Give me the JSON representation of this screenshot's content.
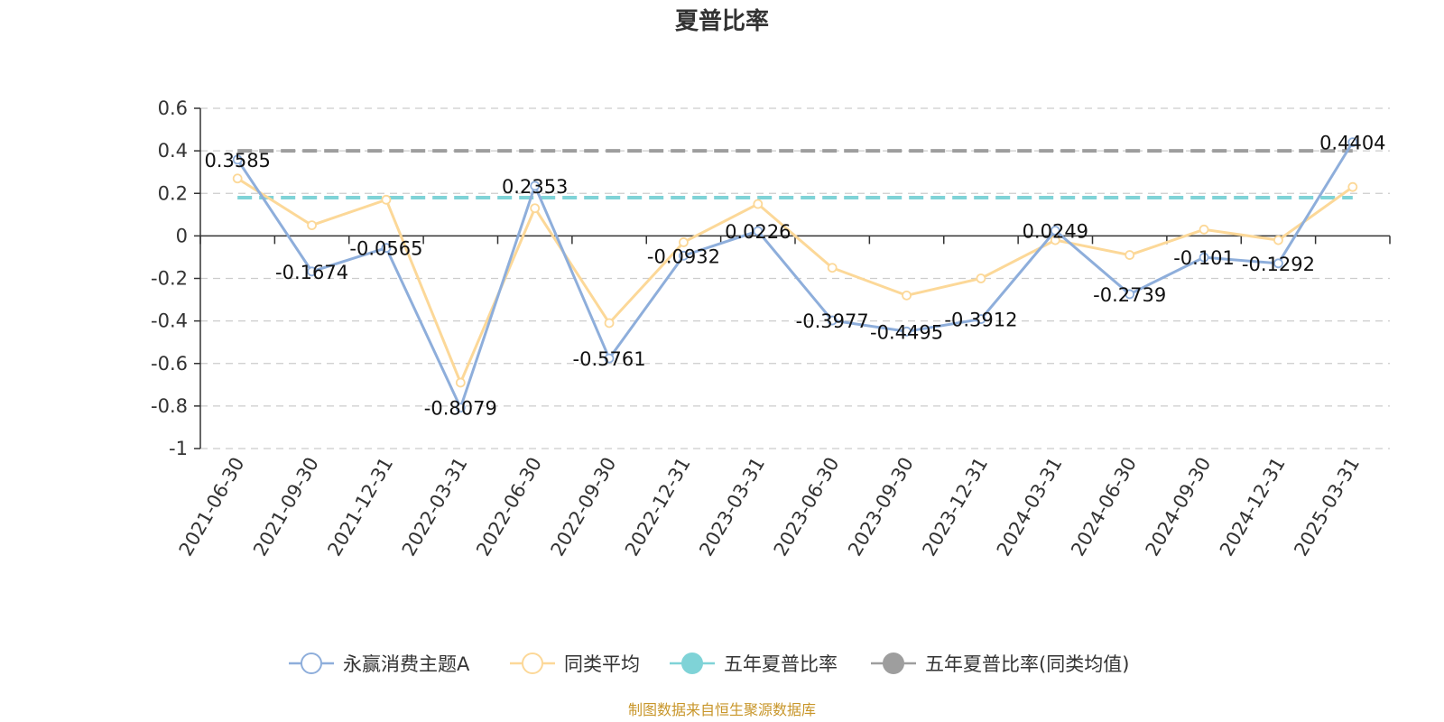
{
  "chart_data": {
    "type": "line",
    "title": "夏普比率",
    "xlabel": "",
    "ylabel": "",
    "ylim": [
      -1,
      0.6
    ],
    "yticks": [
      0.6,
      0.4,
      0.2,
      0,
      -0.2,
      -0.4,
      -0.6,
      -0.8,
      -1
    ],
    "ytick_labels": [
      "0.6",
      "0.4",
      "0.2",
      "0",
      "-0.2",
      "-0.4",
      "-0.6",
      "-0.8",
      "-1"
    ],
    "grid": "horizontal dashed",
    "legend_position": "bottom",
    "categories": [
      "2021-06-30",
      "2021-09-30",
      "2021-12-31",
      "2022-03-31",
      "2022-06-30",
      "2022-09-30",
      "2022-12-31",
      "2023-03-31",
      "2023-06-30",
      "2023-09-30",
      "2023-12-31",
      "2024-03-31",
      "2024-06-30",
      "2024-09-30",
      "2024-12-31",
      "2025-03-31"
    ],
    "series": [
      {
        "name": "永赢消费主题A",
        "color": "#8eaedb",
        "values": [
          0.3585,
          -0.1674,
          -0.0565,
          -0.8079,
          0.2353,
          -0.5761,
          -0.0932,
          0.0226,
          -0.3977,
          -0.4495,
          -0.3912,
          0.0249,
          -0.2739,
          -0.101,
          -0.1292,
          0.4404
        ],
        "labels": [
          "0.3585",
          "-0.1674",
          "-0.0565",
          "-0.8079",
          "0.2353",
          "-0.5761",
          "-0.0932",
          "0.0226",
          "-0.3977",
          "-0.4495",
          "-0.3912",
          "0.0249",
          "-0.2739",
          "-0.101",
          "-0.1292",
          "0.4404"
        ]
      },
      {
        "name": "同类平均",
        "color": "#fcd898",
        "values": [
          0.27,
          0.05,
          0.17,
          -0.69,
          0.13,
          -0.41,
          -0.03,
          0.15,
          -0.15,
          -0.28,
          -0.2,
          -0.02,
          -0.09,
          0.03,
          -0.02,
          0.23
        ]
      },
      {
        "name": "五年夏普比率",
        "color": "#7fd3d7",
        "constant": 0.18
      },
      {
        "name": "五年夏普比率(同类均值)",
        "color": "#9e9e9e",
        "constant": 0.4
      }
    ]
  },
  "footer": {
    "source": "制图数据来自恒生聚源数据库"
  }
}
